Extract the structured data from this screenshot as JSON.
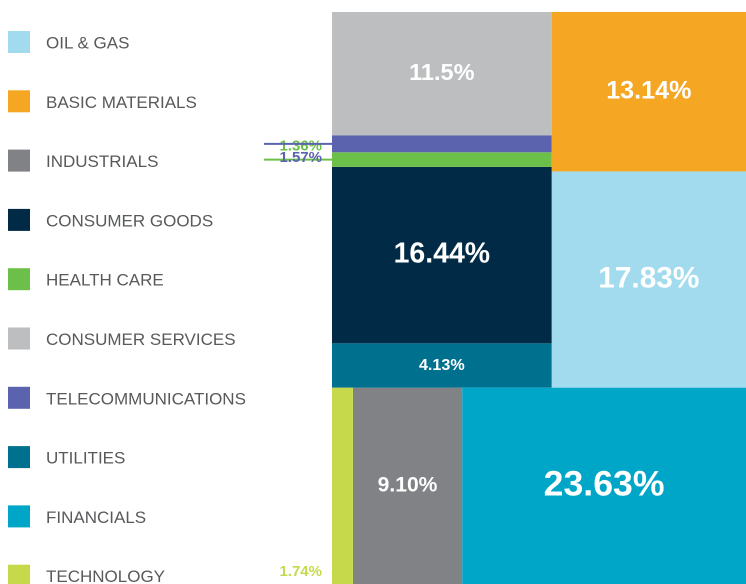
{
  "chart_data": {
    "type": "treemap",
    "categories": [
      "OIL & GAS",
      "BASIC MATERIALS",
      "INDUSTRIALS",
      "CONSUMER GOODS",
      "HEALTH CARE",
      "CONSUMER SERVICES",
      "TELECOMMUNICATIONS",
      "UTILITIES",
      "FINANCIALS",
      "TECHNOLOGY"
    ],
    "values": [
      17.83,
      13.14,
      9.1,
      16.44,
      1.36,
      11.5,
      1.57,
      4.13,
      23.63,
      1.74
    ],
    "value_labels": [
      "17.83%",
      "13.14%",
      "9.10%",
      "16.44%",
      "1.36%",
      "11.5%",
      "1.57%",
      "4.13%",
      "23.63%",
      "1.74%"
    ],
    "colors": [
      "#a3dbee",
      "#f5a623",
      "#808285",
      "#002a45",
      "#6cc04a",
      "#bcbec0",
      "#5b63ae",
      "#00708f",
      "#00a6c8",
      "#c6d94a"
    ]
  }
}
